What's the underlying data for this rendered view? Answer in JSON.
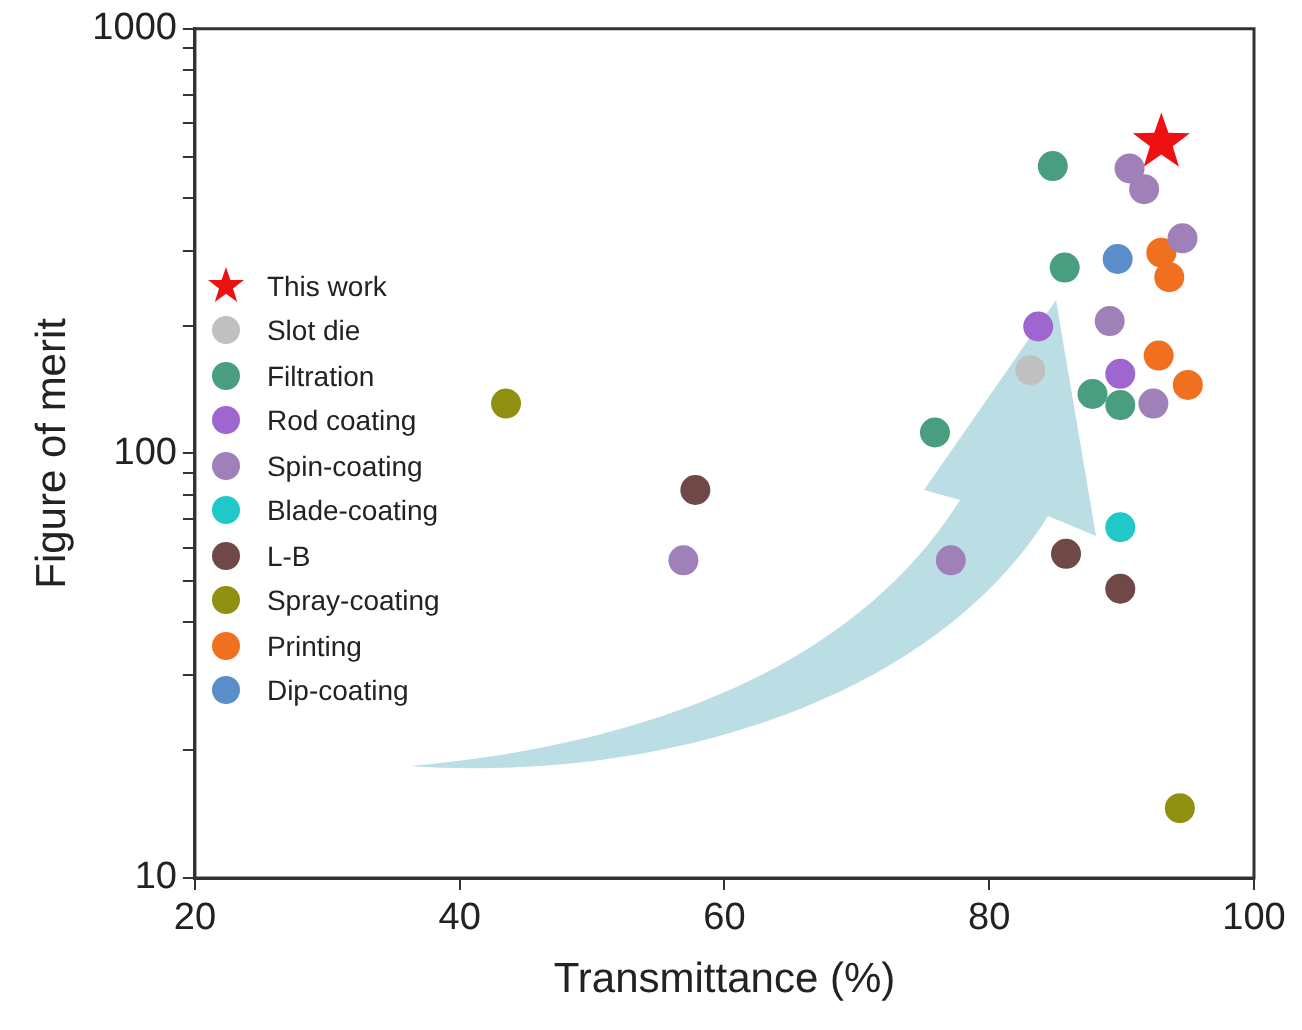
{
  "chart_data": {
    "type": "scatter",
    "xlabel": "Transmittance (%)",
    "ylabel": "Figure of merit",
    "log": "y",
    "xlim": [
      20,
      100
    ],
    "xticks": [
      20,
      40,
      60,
      80,
      100
    ],
    "ylim": [
      10,
      1000
    ],
    "yticks": [
      10,
      {
        "value": 20,
        "label": null
      },
      {
        "value": 30,
        "label": null
      },
      {
        "value": 40,
        "label": null
      },
      {
        "value": 50,
        "label": null
      },
      {
        "value": 60,
        "label": null
      },
      {
        "value": 70,
        "label": null
      },
      {
        "value": 80,
        "label": null
      },
      {
        "value": 90,
        "label": null
      },
      100,
      {
        "value": 200,
        "label": null
      },
      {
        "value": 300,
        "label": null
      },
      {
        "value": 400,
        "label": null
      },
      {
        "value": 500,
        "label": null
      },
      {
        "value": 600,
        "label": null
      },
      {
        "value": 700,
        "label": null
      },
      {
        "value": 800,
        "label": null
      },
      {
        "value": 900,
        "label": null
      },
      1000
    ],
    "grid": false,
    "legend": "left",
    "marker": "circle",
    "series": [
      {
        "name": "This work",
        "color": "#ee1111",
        "marker": "star",
        "x": [
          93
        ],
        "values": [
          540
        ]
      },
      {
        "name": "Slot die",
        "color": "#c0c0c0",
        "x": [
          83.1
        ],
        "values": [
          157
        ]
      },
      {
        "name": "Filtration",
        "color": "#4a9e80",
        "x": [
          84.8,
          85.7,
          75.9,
          87.8,
          89.9
        ],
        "values": [
          475,
          274,
          112,
          138,
          130
        ]
      },
      {
        "name": "Rod coating",
        "color": "#a066d0",
        "x": [
          83.7,
          89.9
        ],
        "values": [
          199,
          154
        ]
      },
      {
        "name": "Spin-coating",
        "color": "#a080b8",
        "x": [
          90.6,
          91.7,
          94.6,
          89.1,
          92.4,
          77.1,
          56.9
        ],
        "values": [
          469,
          419,
          321,
          205,
          131,
          56,
          56
        ]
      },
      {
        "name": "Blade-coating",
        "color": "#20c8c8",
        "x": [
          89.9
        ],
        "values": [
          67
        ]
      },
      {
        "name": "L-B",
        "color": "#704848",
        "x": [
          57.8,
          85.8,
          89.9
        ],
        "values": [
          82,
          58,
          48
        ]
      },
      {
        "name": "Spray-coating",
        "color": "#909010",
        "x": [
          43.5,
          94.4
        ],
        "values": [
          131,
          14.6
        ]
      },
      {
        "name": "Printing",
        "color": "#f07020",
        "x": [
          93,
          93.6,
          92.8,
          95
        ],
        "values": [
          297,
          260,
          170,
          145
        ]
      },
      {
        "name": "Dip-coating",
        "color": "#5a8ec8",
        "x": [
          89.7
        ],
        "values": [
          287
        ]
      }
    ]
  }
}
